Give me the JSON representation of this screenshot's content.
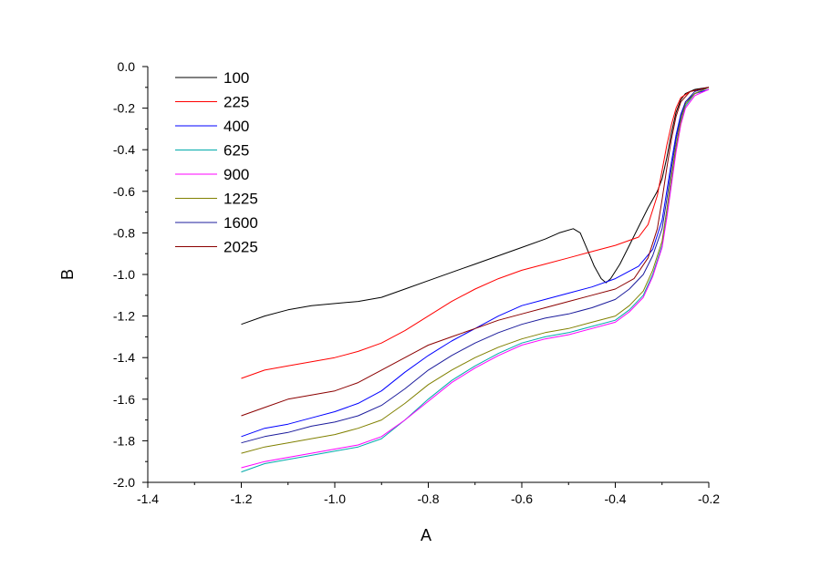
{
  "chart_data": {
    "type": "line",
    "xlabel": "A",
    "ylabel": "B",
    "xlim": [
      -1.4,
      -0.2
    ],
    "ylim": [
      -2.0,
      0.0
    ],
    "x_ticks": [
      "-1.4",
      "-1.2",
      "-1.0",
      "-0.8",
      "-0.6",
      "-0.4",
      "-0.2"
    ],
    "y_ticks": [
      "0.0",
      "-0.2",
      "-0.4",
      "-0.6",
      "-0.8",
      "-1.0",
      "-1.2",
      "-1.4",
      "-1.6",
      "-1.8",
      "-2.0"
    ],
    "grid": false,
    "legend_position": "top-left",
    "series": [
      {
        "name": "100",
        "color": "#000000",
        "points": [
          [
            -1.2,
            -1.24
          ],
          [
            -1.15,
            -1.2
          ],
          [
            -1.1,
            -1.17
          ],
          [
            -1.05,
            -1.15
          ],
          [
            -1.0,
            -1.14
          ],
          [
            -0.95,
            -1.13
          ],
          [
            -0.9,
            -1.11
          ],
          [
            -0.85,
            -1.07
          ],
          [
            -0.8,
            -1.03
          ],
          [
            -0.75,
            -0.99
          ],
          [
            -0.7,
            -0.95
          ],
          [
            -0.65,
            -0.91
          ],
          [
            -0.6,
            -0.87
          ],
          [
            -0.55,
            -0.83
          ],
          [
            -0.52,
            -0.8
          ],
          [
            -0.49,
            -0.78
          ],
          [
            -0.475,
            -0.8
          ],
          [
            -0.46,
            -0.88
          ],
          [
            -0.445,
            -0.96
          ],
          [
            -0.43,
            -1.02
          ],
          [
            -0.42,
            -1.04
          ],
          [
            -0.41,
            -1.02
          ],
          [
            -0.39,
            -0.95
          ],
          [
            -0.37,
            -0.86
          ],
          [
            -0.35,
            -0.77
          ],
          [
            -0.33,
            -0.68
          ],
          [
            -0.31,
            -0.6
          ],
          [
            -0.3,
            -0.54
          ],
          [
            -0.29,
            -0.44
          ],
          [
            -0.28,
            -0.32
          ],
          [
            -0.27,
            -0.22
          ],
          [
            -0.26,
            -0.16
          ],
          [
            -0.25,
            -0.13
          ],
          [
            -0.23,
            -0.11
          ],
          [
            -0.2,
            -0.1
          ]
        ]
      },
      {
        "name": "225",
        "color": "#ff0000",
        "points": [
          [
            -1.2,
            -1.5
          ],
          [
            -1.15,
            -1.46
          ],
          [
            -1.1,
            -1.44
          ],
          [
            -1.05,
            -1.42
          ],
          [
            -1.0,
            -1.4
          ],
          [
            -0.95,
            -1.37
          ],
          [
            -0.9,
            -1.33
          ],
          [
            -0.85,
            -1.27
          ],
          [
            -0.8,
            -1.2
          ],
          [
            -0.75,
            -1.13
          ],
          [
            -0.7,
            -1.07
          ],
          [
            -0.65,
            -1.02
          ],
          [
            -0.6,
            -0.98
          ],
          [
            -0.55,
            -0.95
          ],
          [
            -0.5,
            -0.92
          ],
          [
            -0.45,
            -0.89
          ],
          [
            -0.4,
            -0.86
          ],
          [
            -0.35,
            -0.82
          ],
          [
            -0.33,
            -0.76
          ],
          [
            -0.31,
            -0.62
          ],
          [
            -0.3,
            -0.5
          ],
          [
            -0.29,
            -0.38
          ],
          [
            -0.28,
            -0.28
          ],
          [
            -0.27,
            -0.2
          ],
          [
            -0.26,
            -0.15
          ],
          [
            -0.24,
            -0.12
          ],
          [
            -0.2,
            -0.1
          ]
        ]
      },
      {
        "name": "400",
        "color": "#0000ff",
        "points": [
          [
            -1.2,
            -1.78
          ],
          [
            -1.15,
            -1.74
          ],
          [
            -1.1,
            -1.72
          ],
          [
            -1.05,
            -1.69
          ],
          [
            -1.0,
            -1.66
          ],
          [
            -0.95,
            -1.62
          ],
          [
            -0.9,
            -1.56
          ],
          [
            -0.85,
            -1.47
          ],
          [
            -0.8,
            -1.39
          ],
          [
            -0.75,
            -1.32
          ],
          [
            -0.7,
            -1.26
          ],
          [
            -0.65,
            -1.2
          ],
          [
            -0.6,
            -1.15
          ],
          [
            -0.55,
            -1.12
          ],
          [
            -0.5,
            -1.09
          ],
          [
            -0.45,
            -1.06
          ],
          [
            -0.4,
            -1.02
          ],
          [
            -0.35,
            -0.96
          ],
          [
            -0.32,
            -0.88
          ],
          [
            -0.3,
            -0.74
          ],
          [
            -0.29,
            -0.6
          ],
          [
            -0.28,
            -0.46
          ],
          [
            -0.27,
            -0.33
          ],
          [
            -0.26,
            -0.23
          ],
          [
            -0.25,
            -0.17
          ],
          [
            -0.23,
            -0.13
          ],
          [
            -0.2,
            -0.11
          ]
        ]
      },
      {
        "name": "625",
        "color": "#00aaaa",
        "points": [
          [
            -1.2,
            -1.95
          ],
          [
            -1.15,
            -1.91
          ],
          [
            -1.1,
            -1.89
          ],
          [
            -1.05,
            -1.87
          ],
          [
            -1.0,
            -1.85
          ],
          [
            -0.95,
            -1.83
          ],
          [
            -0.9,
            -1.79
          ],
          [
            -0.85,
            -1.7
          ],
          [
            -0.8,
            -1.6
          ],
          [
            -0.75,
            -1.51
          ],
          [
            -0.7,
            -1.44
          ],
          [
            -0.65,
            -1.38
          ],
          [
            -0.6,
            -1.33
          ],
          [
            -0.55,
            -1.3
          ],
          [
            -0.5,
            -1.28
          ],
          [
            -0.45,
            -1.25
          ],
          [
            -0.4,
            -1.22
          ],
          [
            -0.37,
            -1.17
          ],
          [
            -0.34,
            -1.1
          ],
          [
            -0.32,
            -1.0
          ],
          [
            -0.3,
            -0.86
          ],
          [
            -0.29,
            -0.72
          ],
          [
            -0.28,
            -0.56
          ],
          [
            -0.27,
            -0.4
          ],
          [
            -0.26,
            -0.27
          ],
          [
            -0.25,
            -0.19
          ],
          [
            -0.23,
            -0.13
          ],
          [
            -0.2,
            -0.1
          ]
        ]
      },
      {
        "name": "900",
        "color": "#ff00ff",
        "points": [
          [
            -1.2,
            -1.93
          ],
          [
            -1.15,
            -1.9
          ],
          [
            -1.1,
            -1.88
          ],
          [
            -1.05,
            -1.86
          ],
          [
            -1.0,
            -1.84
          ],
          [
            -0.95,
            -1.82
          ],
          [
            -0.9,
            -1.78
          ],
          [
            -0.85,
            -1.7
          ],
          [
            -0.8,
            -1.61
          ],
          [
            -0.75,
            -1.52
          ],
          [
            -0.7,
            -1.45
          ],
          [
            -0.65,
            -1.39
          ],
          [
            -0.6,
            -1.34
          ],
          [
            -0.55,
            -1.31
          ],
          [
            -0.5,
            -1.29
          ],
          [
            -0.45,
            -1.26
          ],
          [
            -0.4,
            -1.23
          ],
          [
            -0.37,
            -1.18
          ],
          [
            -0.34,
            -1.11
          ],
          [
            -0.32,
            -1.01
          ],
          [
            -0.3,
            -0.87
          ],
          [
            -0.29,
            -0.73
          ],
          [
            -0.28,
            -0.57
          ],
          [
            -0.27,
            -0.41
          ],
          [
            -0.26,
            -0.28
          ],
          [
            -0.25,
            -0.2
          ],
          [
            -0.23,
            -0.14
          ],
          [
            -0.2,
            -0.11
          ]
        ]
      },
      {
        "name": "1225",
        "color": "#808000",
        "points": [
          [
            -1.2,
            -1.86
          ],
          [
            -1.15,
            -1.83
          ],
          [
            -1.1,
            -1.81
          ],
          [
            -1.05,
            -1.79
          ],
          [
            -1.0,
            -1.77
          ],
          [
            -0.95,
            -1.74
          ],
          [
            -0.9,
            -1.7
          ],
          [
            -0.85,
            -1.62
          ],
          [
            -0.8,
            -1.53
          ],
          [
            -0.75,
            -1.46
          ],
          [
            -0.7,
            -1.4
          ],
          [
            -0.65,
            -1.35
          ],
          [
            -0.6,
            -1.31
          ],
          [
            -0.55,
            -1.28
          ],
          [
            -0.5,
            -1.26
          ],
          [
            -0.45,
            -1.23
          ],
          [
            -0.4,
            -1.2
          ],
          [
            -0.37,
            -1.15
          ],
          [
            -0.34,
            -1.08
          ],
          [
            -0.32,
            -0.98
          ],
          [
            -0.3,
            -0.84
          ],
          [
            -0.29,
            -0.69
          ],
          [
            -0.28,
            -0.53
          ],
          [
            -0.27,
            -0.38
          ],
          [
            -0.26,
            -0.26
          ],
          [
            -0.25,
            -0.18
          ],
          [
            -0.23,
            -0.13
          ],
          [
            -0.2,
            -0.1
          ]
        ]
      },
      {
        "name": "1600",
        "color": "#1c1c9c",
        "points": [
          [
            -1.2,
            -1.81
          ],
          [
            -1.15,
            -1.78
          ],
          [
            -1.1,
            -1.76
          ],
          [
            -1.05,
            -1.73
          ],
          [
            -1.0,
            -1.71
          ],
          [
            -0.95,
            -1.68
          ],
          [
            -0.9,
            -1.63
          ],
          [
            -0.85,
            -1.55
          ],
          [
            -0.8,
            -1.46
          ],
          [
            -0.75,
            -1.39
          ],
          [
            -0.7,
            -1.33
          ],
          [
            -0.65,
            -1.28
          ],
          [
            -0.6,
            -1.24
          ],
          [
            -0.55,
            -1.21
          ],
          [
            -0.5,
            -1.19
          ],
          [
            -0.45,
            -1.16
          ],
          [
            -0.4,
            -1.12
          ],
          [
            -0.37,
            -1.07
          ],
          [
            -0.34,
            -1.0
          ],
          [
            -0.32,
            -0.91
          ],
          [
            -0.3,
            -0.78
          ],
          [
            -0.29,
            -0.64
          ],
          [
            -0.28,
            -0.49
          ],
          [
            -0.27,
            -0.35
          ],
          [
            -0.26,
            -0.24
          ],
          [
            -0.25,
            -0.17
          ],
          [
            -0.23,
            -0.12
          ],
          [
            -0.2,
            -0.1
          ]
        ]
      },
      {
        "name": "2025",
        "color": "#8b0000",
        "points": [
          [
            -1.2,
            -1.68
          ],
          [
            -1.15,
            -1.64
          ],
          [
            -1.1,
            -1.6
          ],
          [
            -1.05,
            -1.58
          ],
          [
            -1.0,
            -1.56
          ],
          [
            -0.95,
            -1.52
          ],
          [
            -0.9,
            -1.46
          ],
          [
            -0.85,
            -1.4
          ],
          [
            -0.8,
            -1.34
          ],
          [
            -0.75,
            -1.3
          ],
          [
            -0.7,
            -1.26
          ],
          [
            -0.65,
            -1.22
          ],
          [
            -0.6,
            -1.19
          ],
          [
            -0.55,
            -1.16
          ],
          [
            -0.5,
            -1.13
          ],
          [
            -0.45,
            -1.1
          ],
          [
            -0.4,
            -1.07
          ],
          [
            -0.36,
            -1.02
          ],
          [
            -0.33,
            -0.92
          ],
          [
            -0.31,
            -0.78
          ],
          [
            -0.3,
            -0.64
          ],
          [
            -0.29,
            -0.49
          ],
          [
            -0.28,
            -0.35
          ],
          [
            -0.27,
            -0.24
          ],
          [
            -0.26,
            -0.17
          ],
          [
            -0.24,
            -0.12
          ],
          [
            -0.2,
            -0.1
          ]
        ]
      }
    ]
  }
}
